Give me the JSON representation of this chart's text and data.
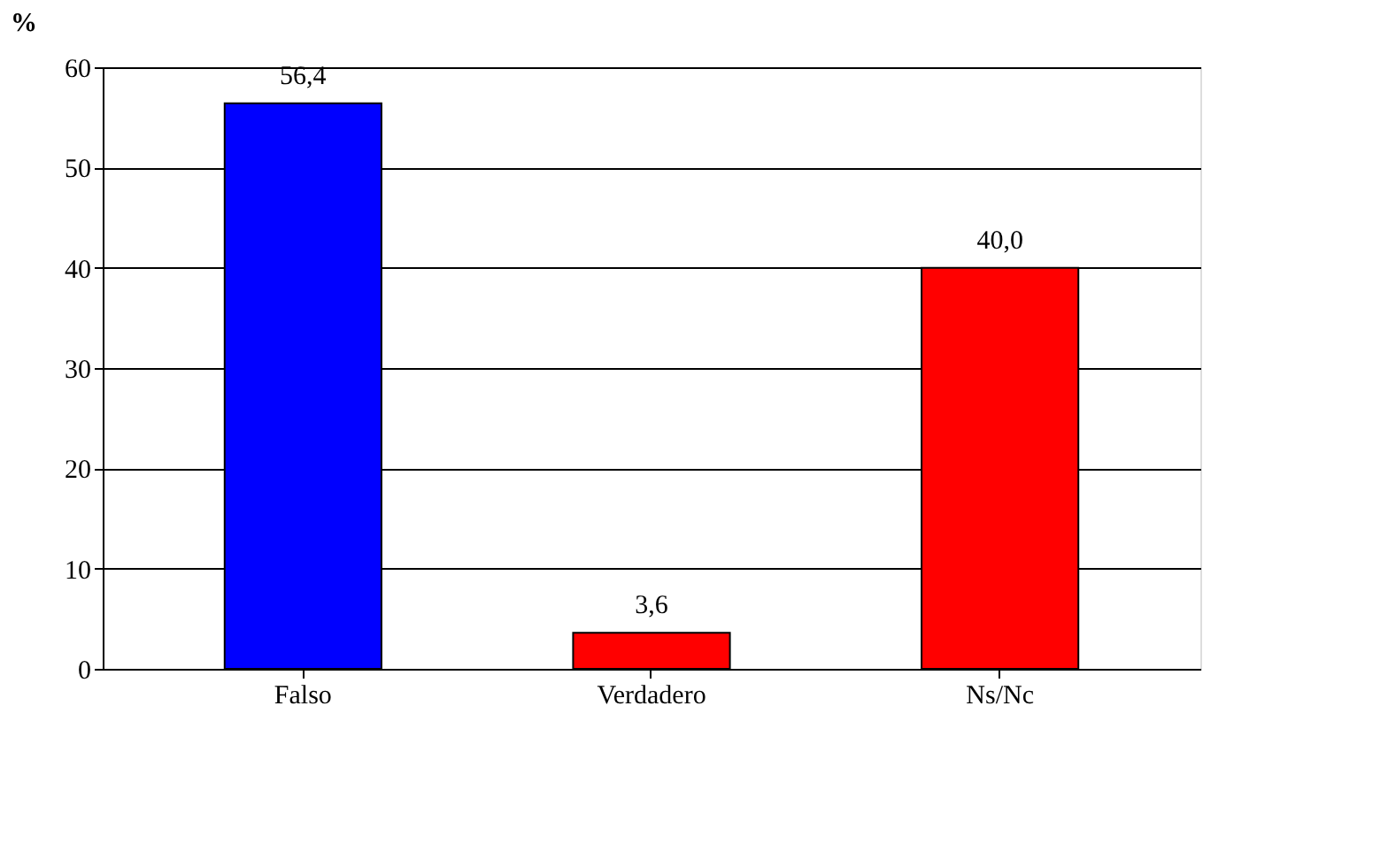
{
  "chart_data": {
    "type": "bar",
    "ylabel": "%",
    "categories": [
      "Falso",
      "Verdadero",
      "Ns/Nc"
    ],
    "values": [
      56.4,
      3.6,
      40.0
    ],
    "colors": [
      "#0000ff",
      "#ff0000",
      "#ff0000"
    ],
    "value_labels": [
      "56,4",
      "3,6",
      "40,0"
    ],
    "ylim": [
      0,
      60
    ],
    "yticks": [
      0,
      10,
      20,
      30,
      40,
      50,
      60
    ],
    "grid": "y"
  }
}
